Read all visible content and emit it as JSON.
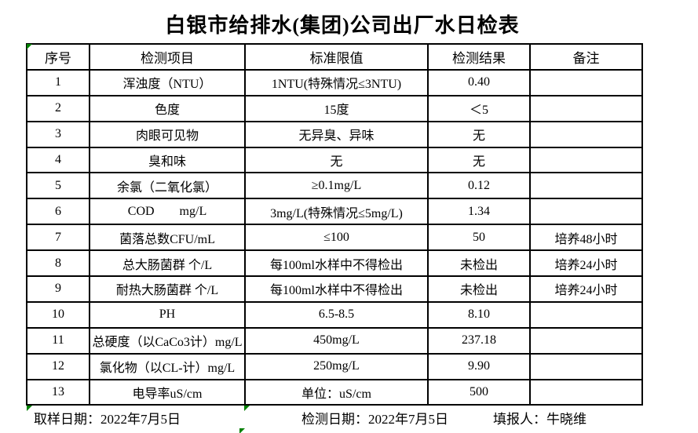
{
  "title": "白银市给排水(集团)公司出厂水日检表",
  "table": {
    "headers": [
      "序号",
      "检测项目",
      "标准限值",
      "检测结果",
      "备注"
    ],
    "rows": [
      {
        "no": "1",
        "item": "浑浊度（NTU）",
        "limit": "1NTU(特殊情况≤3NTU)",
        "result": "0.40",
        "note": ""
      },
      {
        "no": "2",
        "item": "色度",
        "limit": "15度",
        "result": "＜5",
        "note": ""
      },
      {
        "no": "3",
        "item": "肉眼可见物",
        "limit": "无异臭、异味",
        "result": "无",
        "note": ""
      },
      {
        "no": "4",
        "item": "臭和味",
        "limit": "无",
        "result": "无",
        "note": ""
      },
      {
        "no": "5",
        "item": "余氯（二氧化氯）",
        "limit": "≥0.1mg/L",
        "result": "0.12",
        "note": ""
      },
      {
        "no": "6",
        "item": "COD        mg/L",
        "limit": "3mg/L(特殊情况≤5mg/L)",
        "result": "1.34",
        "note": ""
      },
      {
        "no": "7",
        "item": "菌落总数CFU/mL",
        "limit": "≤100",
        "result": "50",
        "note": "培养48小时"
      },
      {
        "no": "8",
        "item": "总大肠菌群 个/L",
        "limit": "每100ml水样中不得检出",
        "result": "未检出",
        "note": "培养24小时"
      },
      {
        "no": "9",
        "item": "耐热大肠菌群 个/L",
        "limit": "每100ml水样中不得检出",
        "result": "未检出",
        "note": "培养24小时"
      },
      {
        "no": "10",
        "item": "PH",
        "limit": "6.5-8.5",
        "result": "8.10",
        "note": ""
      },
      {
        "no": "11",
        "item": "总硬度（以CaCo3计）mg/L",
        "limit": "450mg/L",
        "result": "237.18",
        "note": ""
      },
      {
        "no": "12",
        "item": "氯化物（以CL-计）mg/L",
        "limit": "250mg/L",
        "result": "9.90",
        "note": ""
      },
      {
        "no": "13",
        "item": "电导率uS/cm",
        "limit": "单位：uS/cm",
        "result": "500",
        "note": ""
      }
    ]
  },
  "footer": {
    "sampling_date": "取样日期：2022年7月5日",
    "testing_date": "检测日期：2022年7月5日",
    "reporter": "填报人：牛晓维"
  },
  "colors": {
    "indicator_green": "#008000",
    "border": "#000000",
    "background": "#ffffff"
  },
  "icons": {
    "cell_indicator": "green-corner-triangle"
  }
}
